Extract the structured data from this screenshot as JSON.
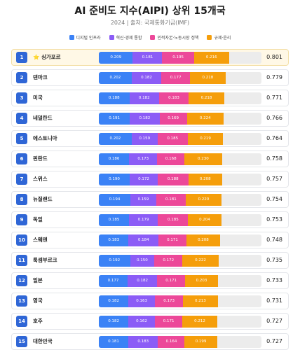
{
  "header": {
    "title": "AI 준비도 지수(AIPI) 상위 15개국",
    "subtitle": "2024 | 출처: 국제통화기금(IMF)"
  },
  "colors": {
    "digital": "#3b82f6",
    "innovation": "#8b5cf6",
    "human": "#ec4899",
    "regulation": "#f59e0b",
    "rank_badge": "#2f66d6"
  },
  "chart_data": {
    "type": "bar",
    "stacked": true,
    "orientation": "horizontal",
    "title": "AI 준비도 지수(AIPI) 상위 15개국",
    "subtitle": "2024 | 출처: 국제통화기금(IMF)",
    "legend_position": "top",
    "xlim": [
      0,
      1
    ],
    "categories": [
      "싱가포르",
      "덴마크",
      "미국",
      "네덜란드",
      "에스토니아",
      "핀란드",
      "스위스",
      "뉴질랜드",
      "독일",
      "스웨덴",
      "룩셈부르크",
      "일본",
      "영국",
      "호주",
      "대한민국"
    ],
    "ranks": [
      "1",
      "2",
      "3",
      "4",
      "5",
      "6",
      "7",
      "8",
      "9",
      "10",
      "11",
      "12",
      "13",
      "14",
      "15"
    ],
    "highlight_prefix": [
      "⭐ ",
      "",
      "",
      "",
      "",
      "",
      "",
      "",
      "",
      "",
      "",
      "",
      "",
      "",
      ""
    ],
    "series": [
      {
        "name": "디지털 인프라",
        "color": "#3b82f6",
        "values": [
          0.209,
          0.202,
          0.188,
          0.191,
          0.202,
          0.186,
          0.19,
          0.194,
          0.185,
          0.183,
          0.192,
          0.177,
          0.182,
          0.182,
          0.181
        ]
      },
      {
        "name": "혁신·경제 통합",
        "color": "#8b5cf6",
        "values": [
          0.181,
          0.182,
          0.182,
          0.182,
          0.159,
          0.173,
          0.172,
          0.159,
          0.179,
          0.184,
          0.15,
          0.182,
          0.163,
          0.162,
          0.183
        ]
      },
      {
        "name": "인적자본·노동시장 정책",
        "color": "#ec4899",
        "values": [
          0.195,
          0.177,
          0.183,
          0.169,
          0.185,
          0.168,
          0.188,
          0.181,
          0.185,
          0.171,
          0.172,
          0.171,
          0.173,
          0.171,
          0.164
        ]
      },
      {
        "name": "규제·윤리",
        "color": "#f59e0b",
        "values": [
          0.216,
          0.218,
          0.218,
          0.224,
          0.219,
          0.23,
          0.208,
          0.22,
          0.204,
          0.208,
          0.222,
          0.203,
          0.213,
          0.212,
          0.199
        ]
      }
    ],
    "totals": [
      "0.801",
      "0.779",
      "0.771",
      "0.766",
      "0.764",
      "0.758",
      "0.757",
      "0.754",
      "0.753",
      "0.748",
      "0.735",
      "0.733",
      "0.731",
      "0.727",
      "0.727"
    ]
  }
}
